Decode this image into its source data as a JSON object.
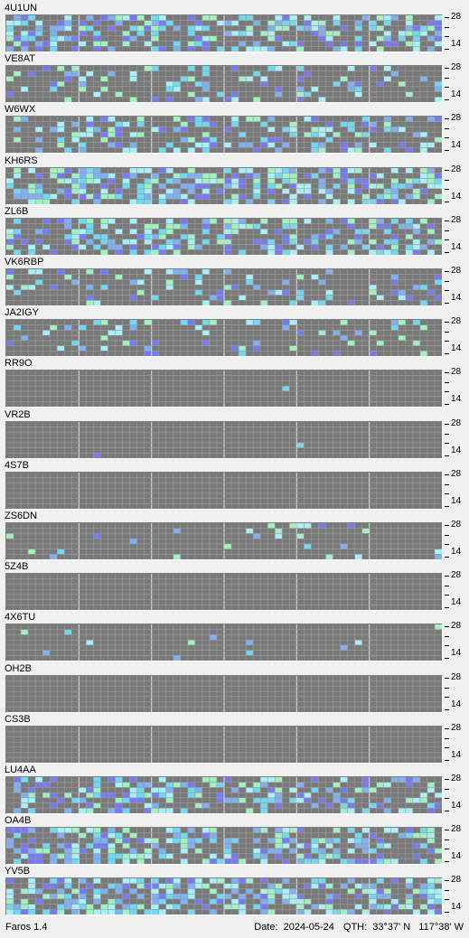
{
  "app": {
    "name": "Faros 1.4"
  },
  "axis": {
    "top_label": "28",
    "bottom_label": "14",
    "mid_marks": [
      "-",
      "-"
    ]
  },
  "colors": {
    "background": "#f0f0f0",
    "panel": "#a8a8a8",
    "empty_cell": "#7a7a7a",
    "gridline": "#9a9a9a",
    "hour_divider": "#d0d0d0",
    "signal_levels": [
      "#a8f0f8",
      "#70d8f0",
      "#80b0f0",
      "#a0f0c0",
      "#7a7af0"
    ]
  },
  "stations": [
    {
      "callsign": "4U1UN",
      "activity": 0.45
    },
    {
      "callsign": "VE8AT",
      "activity": 0.18
    },
    {
      "callsign": "W6WX",
      "activity": 0.3
    },
    {
      "callsign": "KH6RS",
      "activity": 0.55
    },
    {
      "callsign": "ZL6B",
      "activity": 0.42
    },
    {
      "callsign": "VK6RBP",
      "activity": 0.2
    },
    {
      "callsign": "JA2IGY",
      "activity": 0.15
    },
    {
      "callsign": "RR9O",
      "activity": 0.005
    },
    {
      "callsign": "VR2B",
      "activity": 0.005
    },
    {
      "callsign": "4S7B",
      "activity": 0.0
    },
    {
      "callsign": "ZS6DN",
      "activity": 0.05
    },
    {
      "callsign": "5Z4B",
      "activity": 0.0
    },
    {
      "callsign": "4X6TU",
      "activity": 0.02
    },
    {
      "callsign": "OH2B",
      "activity": 0.005
    },
    {
      "callsign": "CS3B",
      "activity": 0.0
    },
    {
      "callsign": "LU4AA",
      "activity": 0.4
    },
    {
      "callsign": "OA4B",
      "activity": 0.45
    },
    {
      "callsign": "YV5B",
      "activity": 0.55
    }
  ],
  "status": {
    "date_label": "Date:",
    "date": "2024-05-24",
    "qth_label": "QTH:",
    "lat": "33°37' N",
    "lon": "117°38' W"
  }
}
